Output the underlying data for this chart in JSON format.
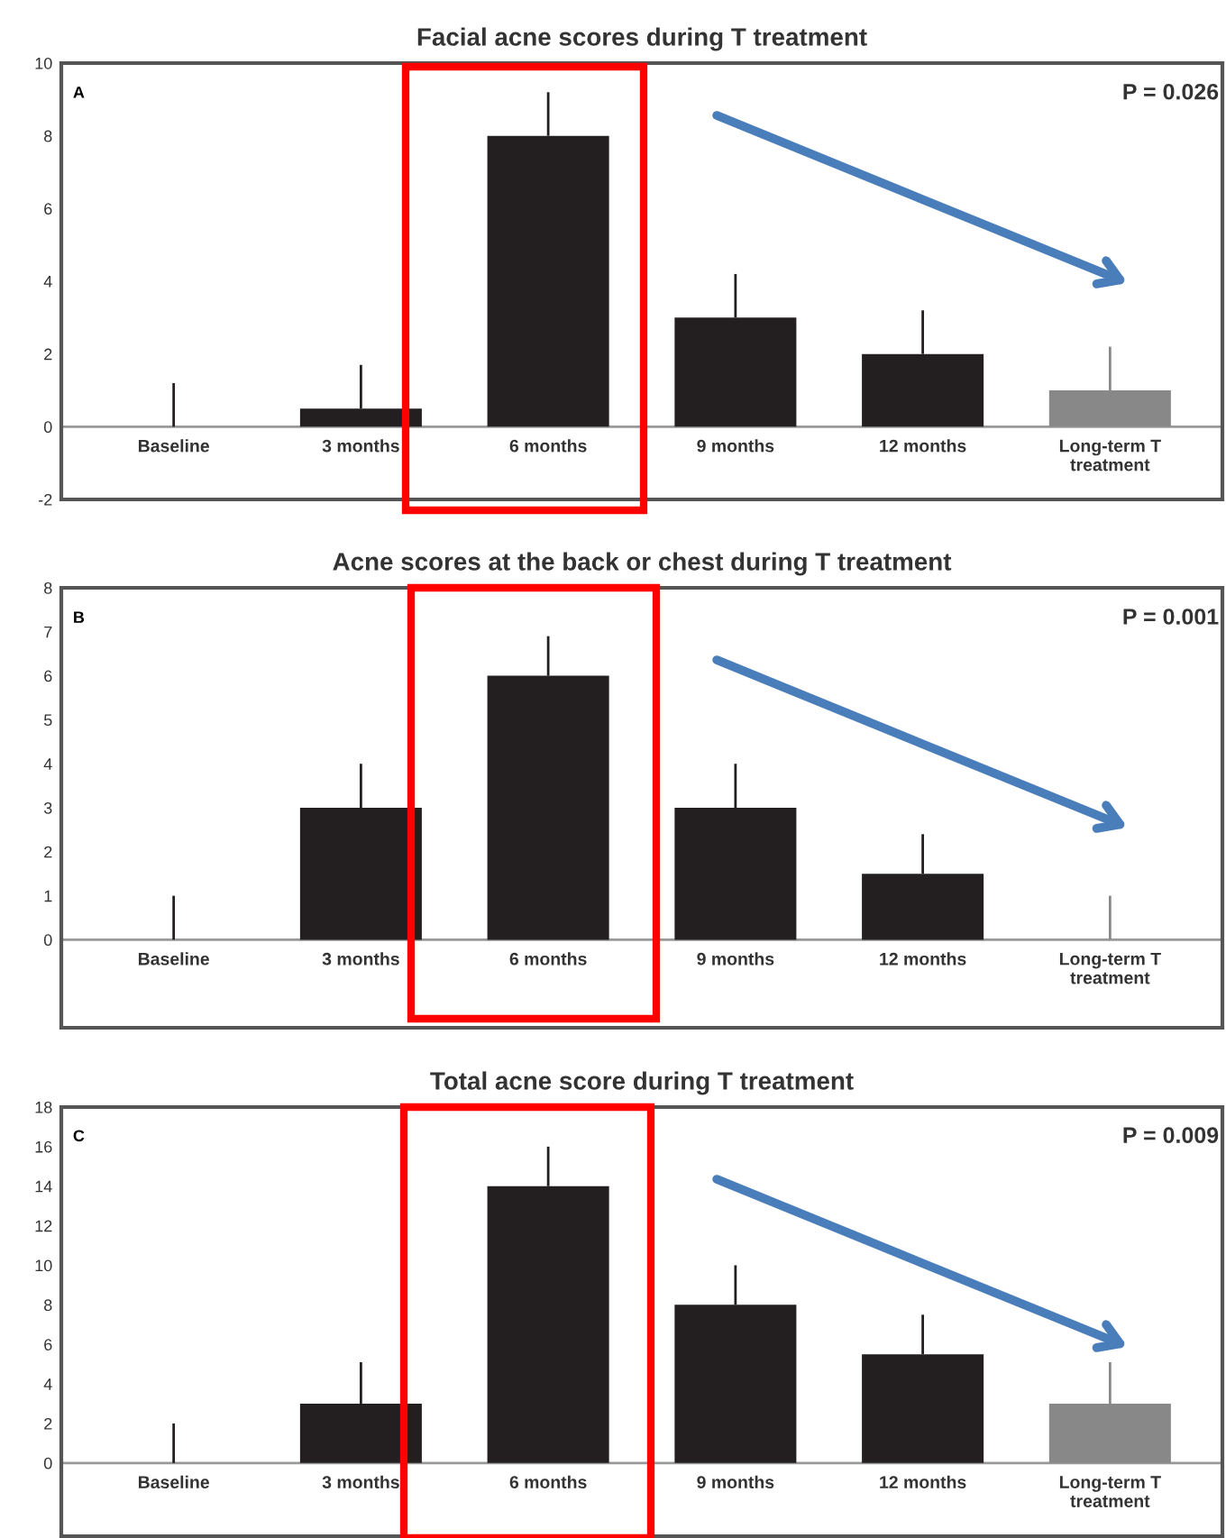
{
  "chart_data": [
    {
      "type": "bar",
      "title": "Facial acne scores during T treatment",
      "categories": [
        "Baseline",
        "3 months",
        "6 months",
        "9 months",
        "12 months",
        "Long-term T\ntreatment"
      ],
      "values": [
        0,
        0.5,
        8,
        3,
        2,
        1
      ],
      "colors": [
        "#231f20",
        "#231f20",
        "#231f20",
        "#231f20",
        "#231f20",
        "#888888"
      ],
      "errors": [
        [
          0,
          1.2
        ],
        [
          0.5,
          1.7
        ],
        [
          8,
          9.2
        ],
        [
          3,
          4.2
        ],
        [
          2,
          3.2
        ],
        [
          1,
          2.2
        ]
      ],
      "ylim": [
        -2,
        10
      ],
      "yticks": [
        -2,
        0,
        2,
        4,
        6,
        8,
        10
      ],
      "annotations": [
        "A",
        "P = 0.026"
      ]
    },
    {
      "type": "bar",
      "title": "Acne scores at the back or chest during T treatment",
      "categories": [
        "Baseline",
        "3 months",
        "6 months",
        "9 months",
        "12 months",
        "Long-term T\ntreatment"
      ],
      "values": [
        0,
        3,
        6,
        3,
        1.5,
        0
      ],
      "colors": [
        "#231f20",
        "#231f20",
        "#231f20",
        "#231f20",
        "#231f20",
        "#888888"
      ],
      "errors": [
        [
          0,
          1
        ],
        [
          3,
          4
        ],
        [
          6,
          6.9
        ],
        [
          3,
          4
        ],
        [
          1.5,
          2.4
        ],
        [
          0,
          1
        ]
      ],
      "ylim": [
        -2,
        8
      ],
      "yticks": [
        0,
        1,
        2,
        3,
        4,
        5,
        6,
        7,
        8
      ],
      "annotations": [
        "B",
        "P = 0.001"
      ]
    },
    {
      "type": "bar",
      "title": "Total acne score during T treatment",
      "categories": [
        "Baseline",
        "3 months",
        "6 months",
        "9 months",
        "12 months",
        "Long-term T\ntreatment"
      ],
      "values": [
        0,
        3,
        14,
        8,
        5.5,
        3
      ],
      "colors": [
        "#231f20",
        "#231f20",
        "#231f20",
        "#231f20",
        "#231f20",
        "#888888"
      ],
      "errors": [
        [
          0,
          2
        ],
        [
          3,
          5.1
        ],
        [
          14,
          16
        ],
        [
          8,
          10
        ],
        [
          5.5,
          7.5
        ],
        [
          3,
          5.1
        ]
      ],
      "ylim": [
        -3.7,
        18
      ],
      "yticks": [
        0,
        2,
        4,
        6,
        8,
        10,
        12,
        14,
        16,
        18
      ],
      "annotations": [
        "C",
        "P = 0.009"
      ]
    }
  ]
}
